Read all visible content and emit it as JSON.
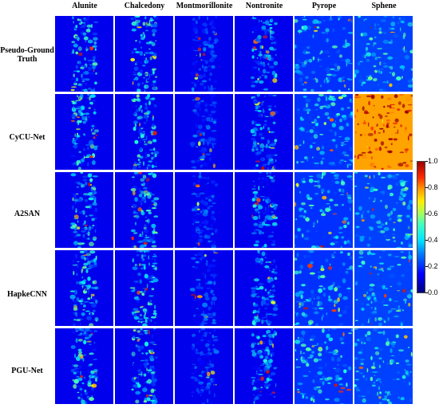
{
  "columns": [
    "Alunite",
    "Chalcedony",
    "Montmorillonite",
    "Nontronite",
    "Pyrope",
    "Sphene"
  ],
  "rows": [
    "Pseudo-Ground Truth",
    "CyCU-Net",
    "A2SAN",
    "HapkeCNN",
    "PGU-Net"
  ],
  "colorbar": {
    "ticks": [
      "1.0",
      "0.8",
      "0.6",
      "0.4",
      "0.2",
      "0.0"
    ],
    "colormap": "jet",
    "min": 0.0,
    "max": 1.0
  }
}
